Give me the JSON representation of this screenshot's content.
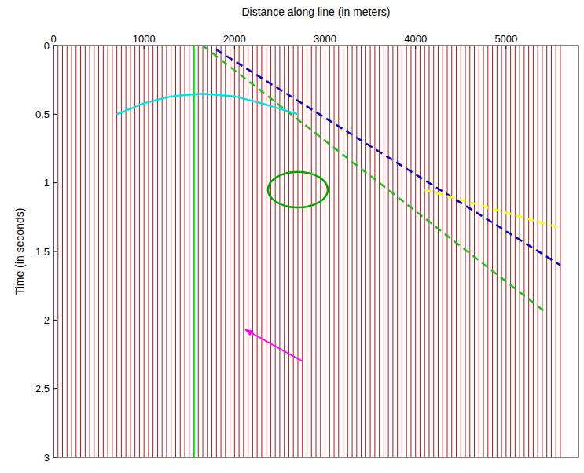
{
  "chart_data": {
    "type": "seismic_gather",
    "x_label": "Distance along line (in meters)",
    "y_label": "Time (in seconds)",
    "xlim": [
      0,
      5800
    ],
    "ylim": [
      0,
      3
    ],
    "xticks": [
      0,
      1000,
      2000,
      3000,
      4000,
      5000
    ],
    "yticks": [
      0,
      0.5,
      1,
      1.5,
      2,
      2.5,
      3
    ],
    "grid": false,
    "traces": {
      "color": "#a00000",
      "x": [
        0,
        50,
        100,
        150,
        200,
        250,
        300,
        350,
        400,
        450,
        500,
        550,
        600,
        650,
        700,
        750,
        800,
        850,
        900,
        950,
        1000,
        1050,
        1100,
        1150,
        1200,
        1250,
        1300,
        1350,
        1400,
        1450,
        1500,
        1550,
        1600,
        1650,
        1700,
        1750,
        1800,
        1850,
        1900,
        1950,
        2000,
        2050,
        2100,
        2150,
        2200,
        2250,
        2300,
        2350,
        2400,
        2450,
        2500,
        2550,
        2600,
        2650,
        2700,
        2750,
        2800,
        2850,
        2900,
        2950,
        3000,
        3050,
        3100,
        3150,
        3200,
        3250,
        3300,
        3350,
        3400,
        3450,
        3500,
        3550,
        3600,
        3650,
        3700,
        3750,
        3800,
        3850,
        3900,
        3950,
        4000,
        4050,
        4100,
        4150,
        4200,
        4250,
        4300,
        4350,
        4400,
        4450,
        4500,
        4550,
        4600,
        4650,
        4700,
        4750,
        4800,
        4850,
        4900,
        4950,
        5000,
        5050,
        5100,
        5150,
        5200,
        5250,
        5300,
        5350,
        5400,
        5450,
        5500,
        5550,
        5600
      ]
    },
    "series": [
      {
        "type": "line",
        "color": "#00dd00",
        "line_style": "solid",
        "x": [
          1550,
          1550
        ],
        "values": [
          0,
          3
        ]
      },
      {
        "type": "line",
        "color": "#22bb22",
        "line_style": "dashed",
        "x": [
          1650,
          5450
        ],
        "values": [
          0,
          1.95
        ]
      },
      {
        "type": "line",
        "color": "#0000cc",
        "line_style": "dashed",
        "x": [
          1800,
          5600
        ],
        "values": [
          0.03,
          1.6
        ]
      },
      {
        "type": "line",
        "color": "#ffff00",
        "line_style": "dashed",
        "x": [
          4100,
          5600
        ],
        "values": [
          1.05,
          1.33
        ]
      },
      {
        "type": "line",
        "color": "#00e5e5",
        "line_style": "solid",
        "x": [
          700,
          1000,
          1300,
          1650,
          2000,
          2300,
          2700
        ],
        "values": [
          0.5,
          0.42,
          0.37,
          0.35,
          0.37,
          0.42,
          0.5
        ]
      }
    ],
    "annotations": [
      {
        "type": "ellipse",
        "color": "#00aa00",
        "x": 2700,
        "y": 1.05,
        "rx": 330,
        "ry": 0.13
      },
      {
        "type": "arrow",
        "color": "#ff00ff",
        "x": [
          2750,
          2120
        ],
        "values": [
          2.3,
          2.07
        ]
      }
    ]
  }
}
